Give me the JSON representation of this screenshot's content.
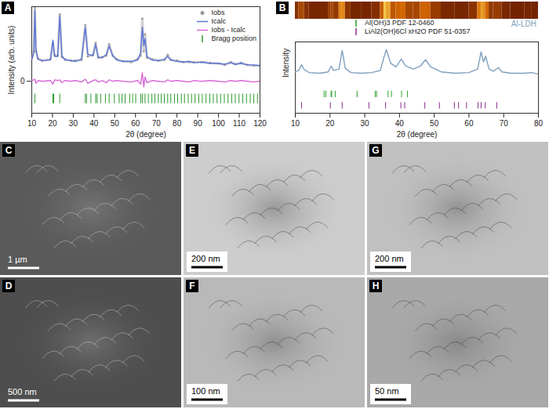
{
  "chart_data": [
    {
      "panel": "A",
      "type": "line",
      "xlabel": "2θ (degree)",
      "ylabel": "Intensity (arb. units)",
      "x": [
        10,
        11,
        11.5,
        12,
        13,
        15,
        19,
        20.2,
        21,
        22.5,
        23.5,
        24.5,
        26,
        29,
        31,
        34,
        35.8,
        37,
        39.5,
        40.8,
        42,
        44,
        46,
        47.3,
        49,
        51,
        54,
        58,
        61,
        62.5,
        63.3,
        64,
        64.6,
        65.5,
        68,
        71,
        74,
        75.5,
        77,
        80,
        83,
        86,
        88,
        92,
        96,
        100,
        103,
        106,
        108,
        111,
        114,
        117,
        120
      ],
      "series": [
        {
          "name": "Iobs",
          "color": "#9a9a9a",
          "marker": "circle",
          "values": [
            32,
            42,
            103,
            42,
            32,
            29,
            31,
            54,
            37,
            36,
            94,
            34,
            31,
            29,
            29,
            30,
            79,
            35,
            37,
            54,
            33,
            34,
            36,
            52,
            36,
            31,
            28,
            27,
            31,
            36,
            88,
            42,
            66,
            33,
            31,
            29,
            30,
            37,
            30,
            29,
            27,
            27,
            27,
            27,
            26,
            25,
            23,
            27,
            24,
            26,
            23,
            22,
            22
          ]
        },
        {
          "name": "Icalc",
          "color": "#5b73d6",
          "values": [
            31,
            40,
            100,
            45,
            31,
            29,
            30,
            58,
            35,
            35,
            92,
            36,
            30,
            29,
            28,
            31,
            76,
            38,
            36,
            52,
            34,
            33,
            38,
            50,
            36,
            30,
            28,
            28,
            30,
            40,
            76,
            50,
            60,
            35,
            30,
            29,
            31,
            35,
            30,
            28,
            27,
            28,
            26,
            27,
            25,
            25,
            24,
            26,
            24,
            25,
            23,
            23,
            22
          ]
        },
        {
          "name": "Iobs - Icalc",
          "color": "#d66ad6",
          "values": [
            1,
            2,
            3,
            -3,
            1,
            0,
            1,
            -4,
            2,
            1,
            2,
            -2,
            1,
            0,
            1,
            -1,
            3,
            -3,
            1,
            2,
            -1,
            1,
            -2,
            2,
            0,
            1,
            0,
            -1,
            1,
            -4,
            12,
            -8,
            6,
            -2,
            1,
            0,
            -1,
            2,
            0,
            1,
            0,
            -1,
            1,
            0,
            1,
            0,
            -1,
            1,
            0,
            1,
            0,
            -1,
            0
          ]
        }
      ],
      "tick_series": [
        {
          "name": "Bragg position",
          "color": "#2e9a2e",
          "positions": [
            11.5,
            20.2,
            20.6,
            23.5,
            35.8,
            36.4,
            38.5,
            40.8,
            41.5,
            43.2,
            45.5,
            47.3,
            49.8,
            52.1,
            53.5,
            55.0,
            57.2,
            58.6,
            60.1,
            62.5,
            63.3,
            64.6,
            66.2,
            67.9,
            69.3,
            71.0,
            72.4,
            73.9,
            75.5,
            77.0,
            78.8,
            80.3,
            82.1,
            83.6,
            85.4,
            87.0,
            88.7,
            90.5,
            92.2,
            94.0,
            95.8,
            97.5,
            99.3,
            101.0,
            102.8,
            104.6,
            106.4,
            108.1,
            109.9,
            111.7,
            113.5,
            115.3,
            117.0,
            118.8
          ]
        }
      ],
      "xlim": [
        10,
        120
      ],
      "xticks": [
        10,
        20,
        30,
        40,
        50,
        60,
        70,
        80,
        90,
        100,
        110,
        120
      ],
      "ylim": [
        -45,
        105
      ],
      "yticks": [
        0
      ],
      "legend": "top-right"
    },
    {
      "panel": "B",
      "type": "line",
      "xlabel": "2θ (degree)",
      "ylabel": "Intensity",
      "x": [
        10,
        11,
        11.8,
        12.6,
        14,
        17,
        19.5,
        20.3,
        21,
        22.6,
        23.5,
        24.4,
        26,
        29,
        32,
        34.5,
        35.5,
        36.2,
        37.5,
        39,
        40.5,
        41.8,
        44,
        46,
        47.5,
        49,
        52,
        56,
        60,
        62.5,
        63.5,
        64.2,
        64.8,
        65.8,
        67,
        68.5,
        69.5,
        72,
        76,
        78,
        80
      ],
      "series": [
        {
          "name": "Al-LDH",
          "color": "#7f9fbf",
          "values": [
            58,
            60,
            68,
            61,
            57,
            56,
            58,
            66,
            60,
            62,
            88,
            63,
            57,
            56,
            57,
            60,
            78,
            89,
            70,
            65,
            76,
            66,
            62,
            66,
            75,
            65,
            58,
            56,
            57,
            62,
            86,
            72,
            80,
            62,
            59,
            64,
            58,
            56,
            56,
            57,
            55
          ]
        }
      ],
      "tick_series": [
        {
          "name": "Al(OH)3 PDF 12-0460",
          "color": "#2ca02c",
          "positions": [
            18.3,
            18.8,
            20.3,
            20.5,
            21.5,
            27.8,
            33.0,
            33.4,
            36.7,
            37.7,
            40.6,
            42.3
          ]
        },
        {
          "name": "LiAl2(OH)6Cl xH2O PDF 51-0357",
          "color": "#8b2a8b",
          "positions": [
            11.8,
            20.1,
            23.5,
            31.2,
            36.0,
            40.4,
            41.5,
            47.3,
            51.5,
            55.8,
            57.0,
            59.3,
            62.6,
            63.5,
            64.7,
            68.0
          ]
        }
      ],
      "xlim": [
        10,
        80
      ],
      "xticks": [
        10,
        20,
        30,
        40,
        50,
        60,
        70,
        80
      ],
      "ylim": [
        0,
        100
      ],
      "yticks": [],
      "tick_labels": "x",
      "legend": "top"
    }
  ],
  "images": [
    {
      "panel": "C",
      "scale_bar": "1 µm",
      "color": "#5a5a5a"
    },
    {
      "panel": "D",
      "scale_bar": "500 nm",
      "color": "#4e4e4e"
    },
    {
      "panel": "E",
      "scale_bar": "200 nm",
      "color": "#cdcdcd"
    },
    {
      "panel": "F",
      "scale_bar": "100 nm",
      "color": "#b9b9b9"
    },
    {
      "panel": "G",
      "scale_bar": "200 nm",
      "color": "#c0c0c0"
    },
    {
      "panel": "H",
      "scale_bar": "50 nm",
      "color": "#a9a9a9"
    }
  ]
}
